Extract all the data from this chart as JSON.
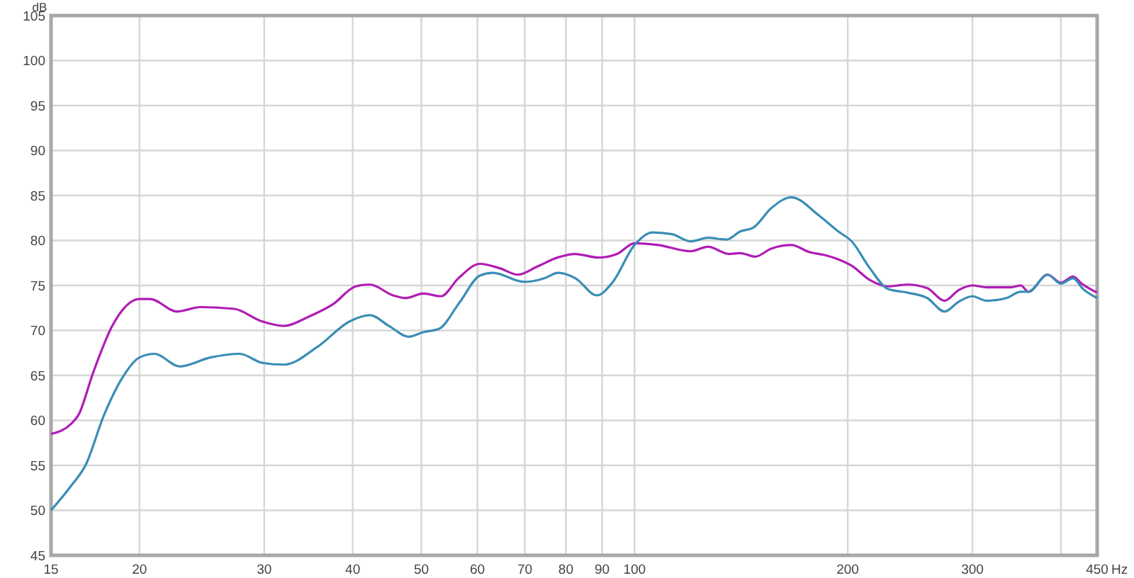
{
  "chart_data": {
    "type": "line",
    "xlabel": "Hz",
    "ylabel": "dB",
    "log": "x",
    "grid": true,
    "line_style": "solid",
    "xlim": [
      15,
      450
    ],
    "ylim": [
      45,
      105
    ],
    "xticks": [
      15,
      20,
      30,
      40,
      50,
      60,
      70,
      80,
      90,
      100,
      200,
      300,
      {
        "value": 400,
        "label": null
      },
      450
    ],
    "yticks": [
      45,
      50,
      55,
      60,
      65,
      70,
      75,
      80,
      85,
      90,
      95,
      100,
      105
    ],
    "series": [
      {
        "color": "#b01cb4",
        "x": [
          15,
          16,
          16.4,
          17.2,
          18.3,
          20,
          20.7,
          22.6,
          24.4,
          27.2,
          29.8,
          32,
          34.6,
          37.5,
          40.4,
          42.3,
          45.6,
          47.6,
          50.3,
          53.3,
          56.4,
          60.5,
          64.6,
          68.4,
          72.9,
          77.8,
          82.5,
          89,
          94.5,
          100,
          108,
          120,
          127,
          136,
          141,
          148,
          156,
          166.5,
          176.7,
          185,
          194,
          202.6,
          215,
          228,
          243,
          259,
          274,
          287,
          300,
          314,
          340,
          351,
          360,
          383,
          400,
          416,
          428,
          450
        ],
        "values": [
          58.5,
          59.6,
          60.6,
          65.3,
          70.5,
          73.5,
          73.5,
          72.1,
          72.6,
          72.4,
          71.0,
          70.5,
          71.5,
          72.9,
          74.9,
          75.1,
          73.9,
          73.6,
          74.1,
          73.8,
          75.8,
          77.4,
          76.9,
          76.2,
          77.1,
          78.1,
          78.5,
          78.1,
          78.5,
          79.7,
          79.5,
          78.8,
          79.3,
          78.5,
          78.6,
          78.2,
          79.1,
          79.5,
          78.7,
          78.4,
          77.9,
          77.2,
          75.6,
          74.9,
          75.1,
          74.7,
          73.3,
          74.5,
          75.0,
          74.8,
          74.8,
          75.0,
          74.3,
          76.2,
          75.3,
          76.0,
          75.2,
          74.2
        ]
      },
      {
        "color": "#3a8db5",
        "x": [
          15,
          16,
          16.8,
          17.8,
          18.9,
          20,
          21,
          22.8,
          25.2,
          27.7,
          29.8,
          32,
          35.7,
          39.6,
          42.3,
          45,
          48,
          50.3,
          53,
          56.6,
          60.5,
          63.1,
          69.8,
          74.6,
          78,
          82.5,
          88.5,
          93,
          100,
          106,
          113,
          120,
          127,
          135,
          141,
          147,
          156,
          166.5,
          182,
          194,
          202.6,
          215,
          228,
          243,
          259,
          274,
          287,
          300,
          314,
          335,
          351,
          360,
          383,
          400,
          416,
          430,
          450
        ],
        "values": [
          50.0,
          52.7,
          55.1,
          60.5,
          64.7,
          67.0,
          67.4,
          66.0,
          67.0,
          67.4,
          66.4,
          66.2,
          68.2,
          71.0,
          71.7,
          70.5,
          69.3,
          69.8,
          70.2,
          73.1,
          76.1,
          76.4,
          75.4,
          75.8,
          76.4,
          75.8,
          73.9,
          75.3,
          79.5,
          80.9,
          80.7,
          79.9,
          80.3,
          80.1,
          81.0,
          81.4,
          83.6,
          84.8,
          82.8,
          81.0,
          79.9,
          76.9,
          74.6,
          74.2,
          73.6,
          72.1,
          73.2,
          73.8,
          73.3,
          73.6,
          74.3,
          74.3,
          76.2,
          75.2,
          75.8,
          74.6,
          73.6
        ]
      }
    ]
  }
}
